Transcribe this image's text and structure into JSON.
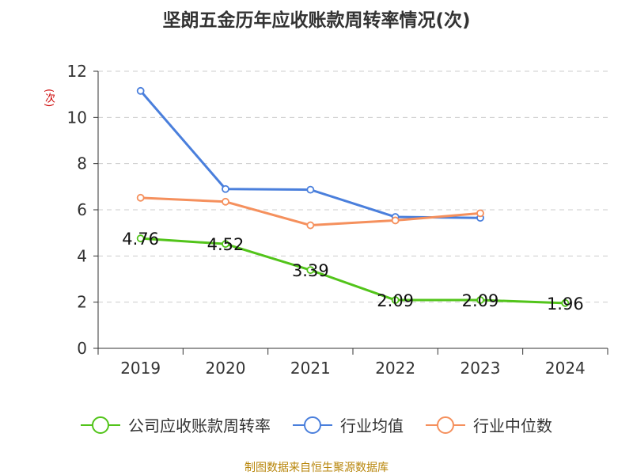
{
  "chart_data": {
    "type": "line",
    "title": "坚朗五金历年应收账款周转率情况(次)",
    "ylabel": "(次)",
    "xlabel": "",
    "categories": [
      "2019",
      "2020",
      "2021",
      "2022",
      "2023",
      "2024"
    ],
    "ylim": [
      0,
      12
    ],
    "yticks": [
      0,
      2,
      4,
      6,
      8,
      10,
      12
    ],
    "grid": true,
    "legend_position": "bottom",
    "series": [
      {
        "name": "公司应收账款周转率",
        "color": "#52c41a",
        "values": [
          4.76,
          4.52,
          3.39,
          2.09,
          2.09,
          1.96
        ],
        "labels": [
          "4.76",
          "4.52",
          "3.39",
          "2.09",
          "2.09",
          "1.96"
        ]
      },
      {
        "name": "行业均值",
        "color": "#4a7fdc",
        "values": [
          11.15,
          6.9,
          6.87,
          5.69,
          5.65,
          null
        ]
      },
      {
        "name": "行业中位数",
        "color": "#f5905d",
        "values": [
          6.52,
          6.35,
          5.33,
          5.54,
          5.85,
          null
        ]
      }
    ],
    "source": "制图数据来自恒生聚源数据库"
  }
}
